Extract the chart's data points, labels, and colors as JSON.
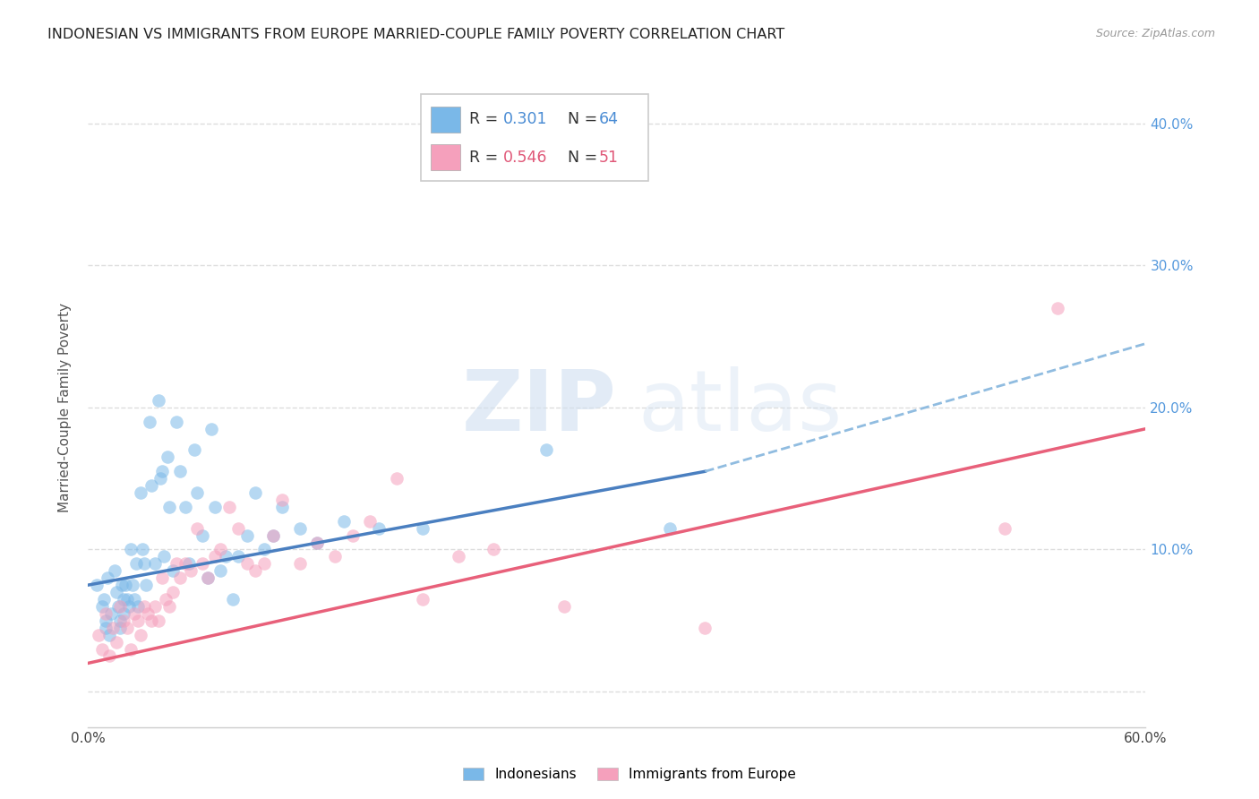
{
  "title": "INDONESIAN VS IMMIGRANTS FROM EUROPE MARRIED-COUPLE FAMILY POVERTY CORRELATION CHART",
  "source": "Source: ZipAtlas.com",
  "ylabel": "Married-Couple Family Poverty",
  "xlim": [
    0.0,
    0.6
  ],
  "ylim": [
    -0.025,
    0.425
  ],
  "yticks": [
    0.0,
    0.1,
    0.2,
    0.3,
    0.4
  ],
  "xticks": [
    0.0,
    0.1,
    0.2,
    0.3,
    0.4,
    0.5,
    0.6
  ],
  "legend_r_blue": "0.301",
  "legend_n_blue": "64",
  "legend_r_pink": "0.546",
  "legend_n_pink": "51",
  "blue_color": "#7ab8e8",
  "pink_color": "#f5a0bc",
  "line_blue_solid": "#4a7fc0",
  "line_blue_dashed": "#90bce0",
  "line_pink": "#e8607a",
  "watermark_zip": "ZIP",
  "watermark_atlas": "atlas",
  "indonesians_x": [
    0.005,
    0.008,
    0.009,
    0.01,
    0.01,
    0.011,
    0.012,
    0.013,
    0.015,
    0.016,
    0.017,
    0.018,
    0.018,
    0.019,
    0.02,
    0.02,
    0.021,
    0.022,
    0.023,
    0.024,
    0.025,
    0.026,
    0.027,
    0.028,
    0.03,
    0.031,
    0.032,
    0.033,
    0.035,
    0.036,
    0.038,
    0.04,
    0.041,
    0.042,
    0.043,
    0.045,
    0.046,
    0.048,
    0.05,
    0.052,
    0.055,
    0.057,
    0.06,
    0.062,
    0.065,
    0.068,
    0.07,
    0.072,
    0.075,
    0.078,
    0.082,
    0.085,
    0.09,
    0.095,
    0.1,
    0.105,
    0.11,
    0.12,
    0.13,
    0.145,
    0.165,
    0.19,
    0.26,
    0.33
  ],
  "indonesians_y": [
    0.075,
    0.06,
    0.065,
    0.05,
    0.045,
    0.08,
    0.04,
    0.055,
    0.085,
    0.07,
    0.06,
    0.05,
    0.045,
    0.075,
    0.065,
    0.055,
    0.075,
    0.065,
    0.06,
    0.1,
    0.075,
    0.065,
    0.09,
    0.06,
    0.14,
    0.1,
    0.09,
    0.075,
    0.19,
    0.145,
    0.09,
    0.205,
    0.15,
    0.155,
    0.095,
    0.165,
    0.13,
    0.085,
    0.19,
    0.155,
    0.13,
    0.09,
    0.17,
    0.14,
    0.11,
    0.08,
    0.185,
    0.13,
    0.085,
    0.095,
    0.065,
    0.095,
    0.11,
    0.14,
    0.1,
    0.11,
    0.13,
    0.115,
    0.105,
    0.12,
    0.115,
    0.115,
    0.17,
    0.115
  ],
  "europe_x": [
    0.006,
    0.008,
    0.01,
    0.012,
    0.014,
    0.016,
    0.018,
    0.02,
    0.022,
    0.024,
    0.026,
    0.028,
    0.03,
    0.032,
    0.034,
    0.036,
    0.038,
    0.04,
    0.042,
    0.044,
    0.046,
    0.048,
    0.05,
    0.052,
    0.055,
    0.058,
    0.062,
    0.065,
    0.068,
    0.072,
    0.075,
    0.08,
    0.085,
    0.09,
    0.095,
    0.1,
    0.105,
    0.11,
    0.12,
    0.13,
    0.14,
    0.15,
    0.16,
    0.175,
    0.19,
    0.21,
    0.23,
    0.27,
    0.35,
    0.52,
    0.55
  ],
  "europe_y": [
    0.04,
    0.03,
    0.055,
    0.025,
    0.045,
    0.035,
    0.06,
    0.05,
    0.045,
    0.03,
    0.055,
    0.05,
    0.04,
    0.06,
    0.055,
    0.05,
    0.06,
    0.05,
    0.08,
    0.065,
    0.06,
    0.07,
    0.09,
    0.08,
    0.09,
    0.085,
    0.115,
    0.09,
    0.08,
    0.095,
    0.1,
    0.13,
    0.115,
    0.09,
    0.085,
    0.09,
    0.11,
    0.135,
    0.09,
    0.105,
    0.095,
    0.11,
    0.12,
    0.15,
    0.065,
    0.095,
    0.1,
    0.06,
    0.045,
    0.115,
    0.27
  ],
  "background_color": "#ffffff",
  "grid_color": "#dddddd",
  "blue_line_x_solid_end": 0.35,
  "blue_line_y_start": 0.075,
  "blue_line_y_end_solid": 0.155,
  "blue_line_y_end_dashed": 0.245,
  "pink_line_y_start": 0.02,
  "pink_line_y_end": 0.185
}
